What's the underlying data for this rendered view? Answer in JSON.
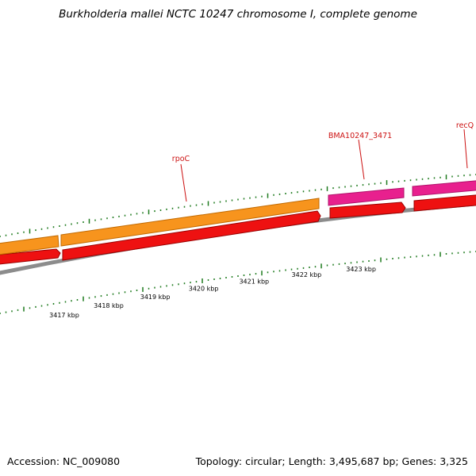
{
  "title": "Burkholderia mallei NCTC 10247 chromosome I, complete genome",
  "footer": {
    "accession": "Accession: NC_009080",
    "stats": "Topology: circular; Length: 3,495,687 bp; Genes: 3,325"
  },
  "colors": {
    "forward_cds_orange": "#f7941d",
    "forward_cds_pink": "#e8208e",
    "reverse_cds_red": "#ee1111",
    "backbone_gray": "#8c8c8c",
    "tick_green": "#1e7a1e",
    "gene_label_red": "#cc1111"
  },
  "gene_labels": [
    {
      "id": "rpoC",
      "label": "rpoC"
    },
    {
      "id": "bma",
      "label": "BMA10247_3471"
    },
    {
      "id": "recq",
      "label": "recQ"
    }
  ],
  "scale_labels": [
    "3417 kbp",
    "3418 kbp",
    "3419 kbp",
    "3420 kbp",
    "3421 kbp",
    "3422 kbp",
    "3423 kbp"
  ]
}
